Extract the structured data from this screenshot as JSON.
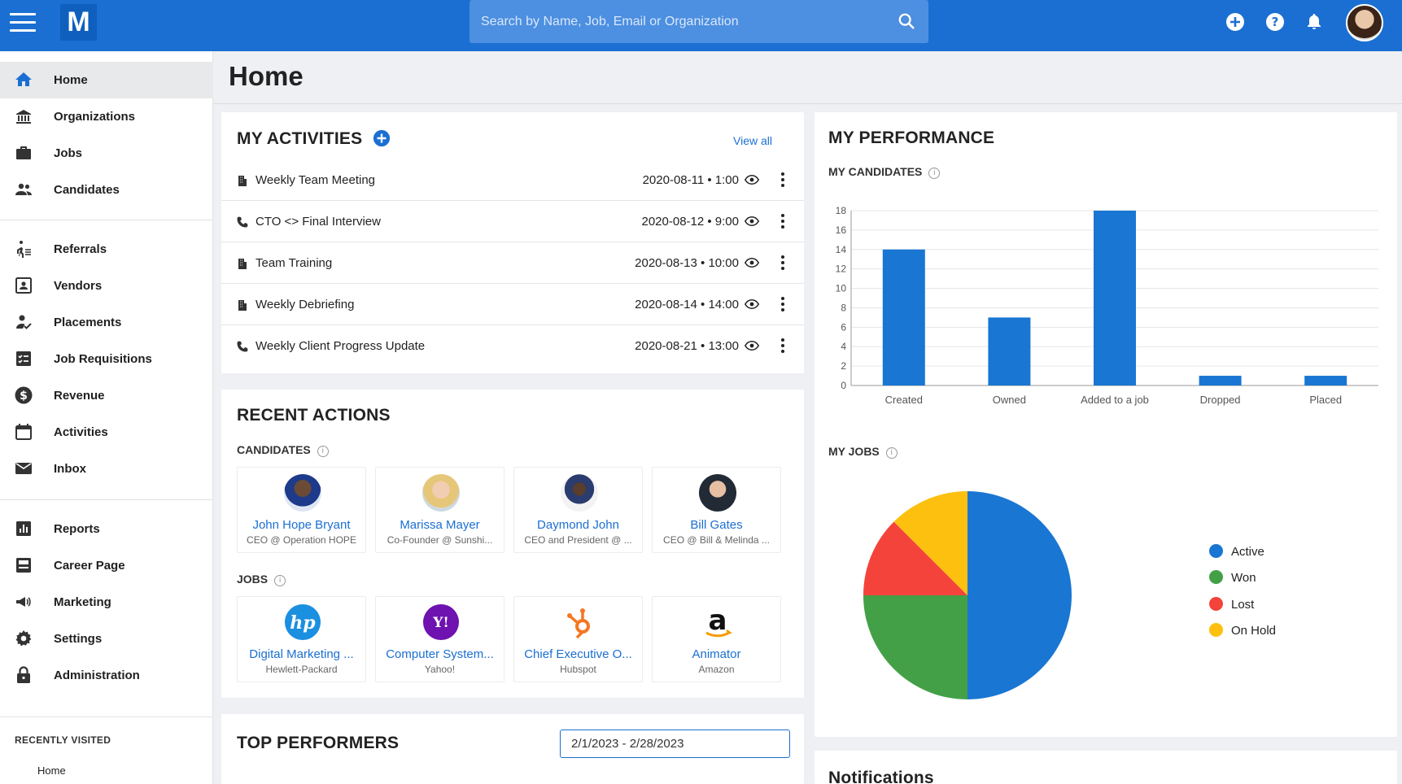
{
  "header": {
    "logo": "M",
    "search_placeholder": "Search by Name, Job, Email or Organization"
  },
  "sidebar": {
    "items": [
      {
        "label": "Home",
        "icon": "home-icon"
      },
      {
        "label": "Organizations",
        "icon": "bank-icon"
      },
      {
        "label": "Jobs",
        "icon": "briefcase-icon"
      },
      {
        "label": "Candidates",
        "icon": "people-icon"
      },
      {
        "label": "Referrals",
        "icon": "referral-icon"
      },
      {
        "label": "Vendors",
        "icon": "contact-card-icon"
      },
      {
        "label": "Placements",
        "icon": "person-check-icon"
      },
      {
        "label": "Job Requisitions",
        "icon": "checklist-icon"
      },
      {
        "label": "Revenue",
        "icon": "dollar-icon"
      },
      {
        "label": "Activities",
        "icon": "calendar-icon"
      },
      {
        "label": "Inbox",
        "icon": "mail-icon"
      },
      {
        "label": "Reports",
        "icon": "bar-chart-icon"
      },
      {
        "label": "Career Page",
        "icon": "page-icon"
      },
      {
        "label": "Marketing",
        "icon": "megaphone-icon"
      },
      {
        "label": "Settings",
        "icon": "gear-icon"
      },
      {
        "label": "Administration",
        "icon": "lock-icon"
      }
    ],
    "recent_title": "RECENTLY VISITED",
    "recent_items": [
      "Home"
    ]
  },
  "page": {
    "title": "Home"
  },
  "activities": {
    "title": "MY ACTIVITIES",
    "view_all": "View all",
    "rows": [
      {
        "name": "Weekly Team Meeting",
        "date": "2020-08-11 • 1:00",
        "icon": "building-icon"
      },
      {
        "name": "CTO <> Final Interview",
        "date": "2020-08-12 • 9:00",
        "icon": "phone-icon"
      },
      {
        "name": "Team Training",
        "date": "2020-08-13 • 10:00",
        "icon": "building-icon"
      },
      {
        "name": "Weekly Debriefing",
        "date": "2020-08-14 • 14:00",
        "icon": "building-icon"
      },
      {
        "name": "Weekly Client Progress Update",
        "date": "2020-08-21 • 13:00",
        "icon": "phone-icon"
      }
    ]
  },
  "recent_actions": {
    "title": "RECENT ACTIONS",
    "candidates_label": "CANDIDATES",
    "candidates": [
      {
        "name": "John Hope Bryant",
        "sub": "CEO @ Operation HOPE"
      },
      {
        "name": "Marissa Mayer",
        "sub": "Co-Founder @ Sunshi..."
      },
      {
        "name": "Daymond John",
        "sub": "CEO and President @ ..."
      },
      {
        "name": "Bill Gates",
        "sub": "CEO @ Bill & Melinda ..."
      }
    ],
    "jobs_label": "JOBS",
    "jobs": [
      {
        "name": "Digital Marketing ...",
        "sub": "Hewlett-Packard",
        "logo": "hp"
      },
      {
        "name": "Computer System...",
        "sub": "Yahoo!",
        "logo": "Y!"
      },
      {
        "name": "Chief Executive O...",
        "sub": "Hubspot",
        "logo": "hubspot"
      },
      {
        "name": "Animator",
        "sub": "Amazon",
        "logo": "a"
      }
    ]
  },
  "top_performers": {
    "title": "TOP PERFORMERS",
    "date_range": "2/1/2023 - 2/28/2023"
  },
  "performance": {
    "title": "MY PERFORMANCE",
    "candidates_label": "MY CANDIDATES",
    "jobs_label": "MY JOBS"
  },
  "notifications": {
    "title": "Notifications"
  },
  "colors": {
    "primary": "#1b6fd2",
    "active": "#1976d2",
    "won": "#43a047",
    "lost": "#f4433b",
    "on_hold": "#fdc00f"
  },
  "chart_data": [
    {
      "type": "bar",
      "categories": [
        "Created",
        "Owned",
        "Added to a job",
        "Dropped",
        "Placed"
      ],
      "values": [
        14,
        7,
        18,
        1,
        1
      ],
      "ylim": [
        0,
        18
      ],
      "yticks": [
        0,
        2,
        4,
        6,
        8,
        10,
        12,
        14,
        16,
        18
      ],
      "grid": true
    },
    {
      "type": "pie",
      "labels": [
        "Active",
        "Won",
        "Lost",
        "On Hold"
      ],
      "values": [
        50,
        25,
        12.5,
        12.5
      ],
      "legend": "right"
    }
  ]
}
